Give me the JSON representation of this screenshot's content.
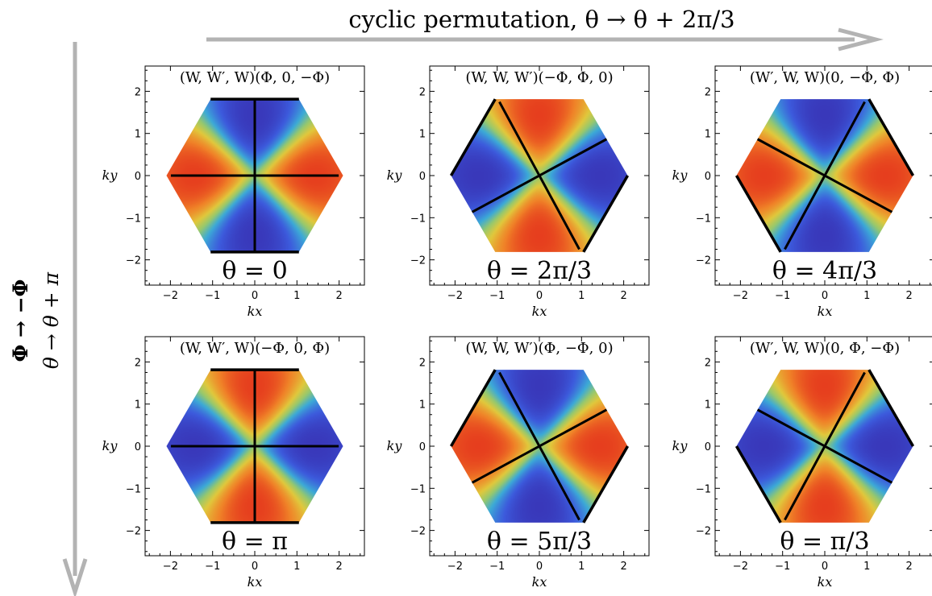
{
  "figure": {
    "top_arrow_label": "cyclic permutation, θ → θ + 2π/3",
    "side_arrow_label_1": "Φ → −Φ",
    "side_arrow_label_2": "θ → θ + π",
    "colors": {
      "arrow": "#b3b3b3",
      "frame": "#000000"
    }
  },
  "chart_data": [
    {
      "type": "heatmap",
      "title": "(W, W′, W)(Φ, 0, −Φ)",
      "theta_label": "θ = 0",
      "theta": 0,
      "xlabel": "kx",
      "ylabel": "ky",
      "xlim": [
        -2.6,
        2.6
      ],
      "ylim": [
        -2.6,
        2.6
      ],
      "xticks": [
        -2,
        -1,
        0,
        1,
        2
      ],
      "yticks": [
        -2,
        -1,
        0,
        1,
        2
      ]
    },
    {
      "type": "heatmap",
      "title": "(W, W, W′)(−Φ, Φ, 0)",
      "theta_label": "θ = 2π/3",
      "theta": 2.0944,
      "xlabel": "kx",
      "ylabel": "ky",
      "xlim": [
        -2.6,
        2.6
      ],
      "ylim": [
        -2.6,
        2.6
      ],
      "xticks": [
        -2,
        -1,
        0,
        1,
        2
      ],
      "yticks": [
        -2,
        -1,
        0,
        1,
        2
      ]
    },
    {
      "type": "heatmap",
      "title": "(W′, W, W)(0, −Φ, Φ)",
      "theta_label": "θ = 4π/3",
      "theta": 4.1888,
      "xlabel": "kx",
      "ylabel": "ky",
      "xlim": [
        -2.6,
        2.6
      ],
      "ylim": [
        -2.6,
        2.6
      ],
      "xticks": [
        -2,
        -1,
        0,
        1,
        2
      ],
      "yticks": [
        -2,
        -1,
        0,
        1,
        2
      ]
    },
    {
      "type": "heatmap",
      "title": "(W, W′, W)(−Φ, 0, Φ)",
      "theta_label": "θ = π",
      "theta": 3.1416,
      "xlabel": "kx",
      "ylabel": "ky",
      "xlim": [
        -2.6,
        2.6
      ],
      "ylim": [
        -2.6,
        2.6
      ],
      "xticks": [
        -2,
        -1,
        0,
        1,
        2
      ],
      "yticks": [
        -2,
        -1,
        0,
        1,
        2
      ]
    },
    {
      "type": "heatmap",
      "title": "(W, W, W′)(Φ, −Φ, 0)",
      "theta_label": "θ = 5π/3",
      "theta": 5.236,
      "xlabel": "kx",
      "ylabel": "ky",
      "xlim": [
        -2.6,
        2.6
      ],
      "ylim": [
        -2.6,
        2.6
      ],
      "xticks": [
        -2,
        -1,
        0,
        1,
        2
      ],
      "yticks": [
        -2,
        -1,
        0,
        1,
        2
      ]
    },
    {
      "type": "heatmap",
      "title": "(W′, W, W)(0, Φ, −Φ)",
      "theta_label": "θ = π/3",
      "theta": 1.0472,
      "xlabel": "kx",
      "ylabel": "ky",
      "xlim": [
        -2.6,
        2.6
      ],
      "ylim": [
        -2.6,
        2.6
      ],
      "xticks": [
        -2,
        -1,
        0,
        1,
        2
      ],
      "yticks": [
        -2,
        -1,
        0,
        1,
        2
      ]
    }
  ]
}
